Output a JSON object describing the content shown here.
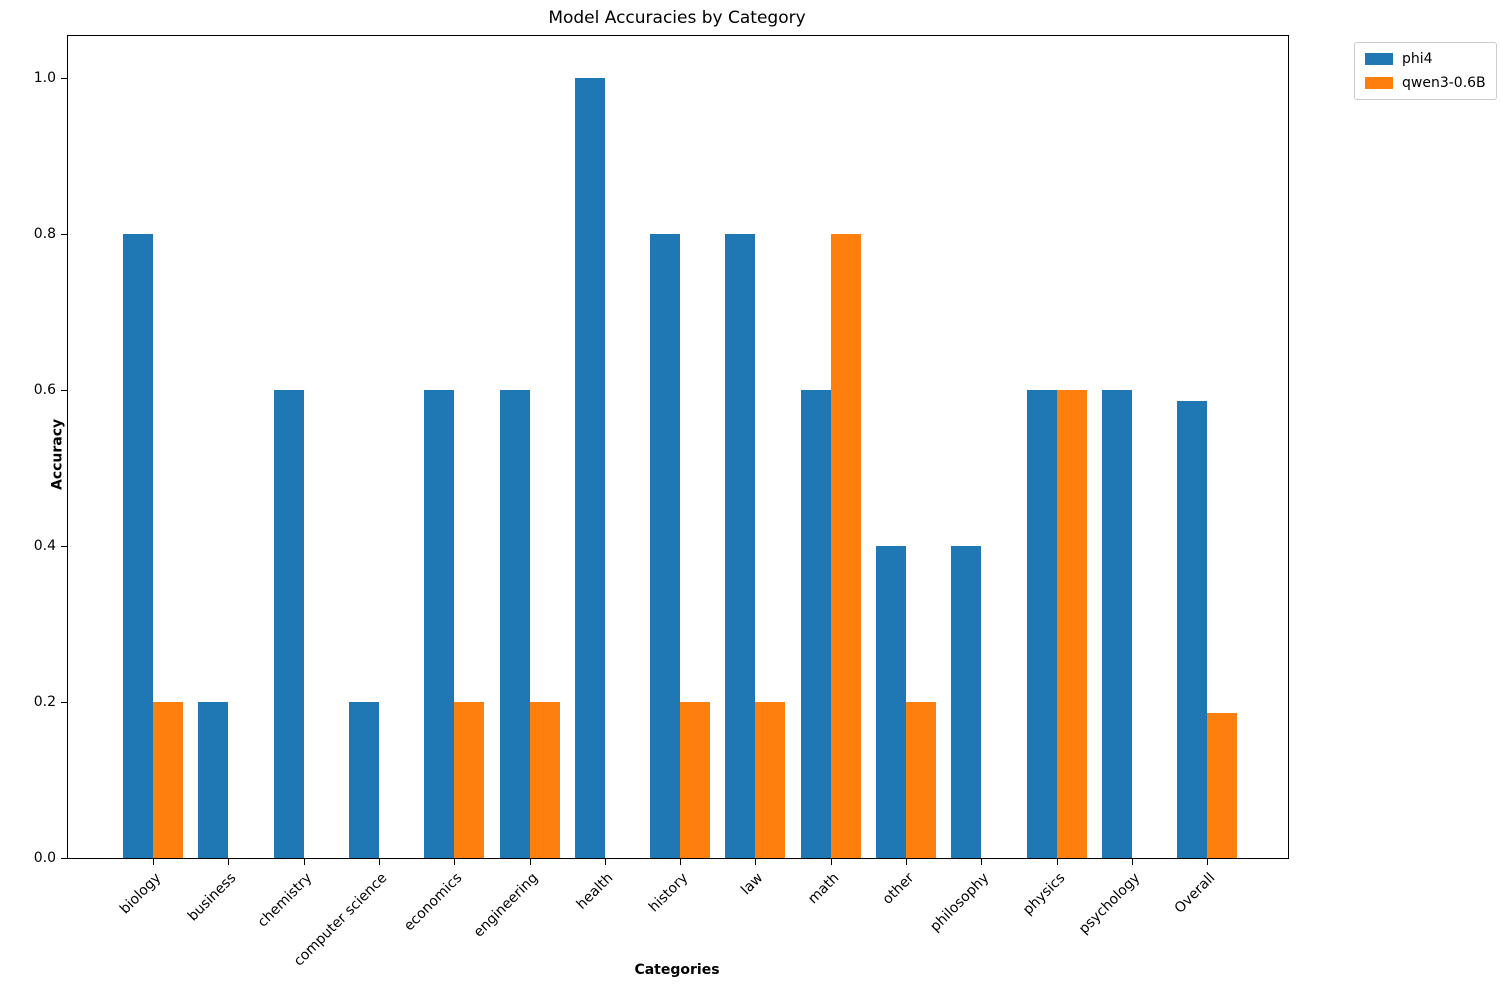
{
  "chart_data": {
    "type": "bar",
    "title": "Model Accuracies by Category",
    "xlabel": "Categories",
    "ylabel": "Accuracy",
    "categories": [
      "biology",
      "business",
      "chemistry",
      "computer science",
      "economics",
      "engineering",
      "health",
      "history",
      "law",
      "math",
      "other",
      "philosophy",
      "physics",
      "psychology",
      "Overall"
    ],
    "series": [
      {
        "name": "phi4",
        "color": "#1f77b4",
        "values": [
          0.8,
          0.2,
          0.6,
          0.2,
          0.6,
          0.6,
          1.0,
          0.8,
          0.8,
          0.6,
          0.4,
          0.4,
          0.6,
          0.6,
          0.586
        ]
      },
      {
        "name": "qwen3-0.6B",
        "color": "#ff7f0e",
        "values": [
          0.2,
          0.0,
          0.0,
          0.0,
          0.2,
          0.2,
          0.0,
          0.2,
          0.2,
          0.8,
          0.2,
          0.0,
          0.6,
          0.0,
          0.186
        ]
      }
    ],
    "yticks": [
      "0.0",
      "0.2",
      "0.4",
      "0.6",
      "0.8",
      "1.0"
    ],
    "ylim": [
      0,
      1.05
    ],
    "grid": false,
    "legend_position": "upper right, outside axes",
    "xtick_rotation": 45
  }
}
